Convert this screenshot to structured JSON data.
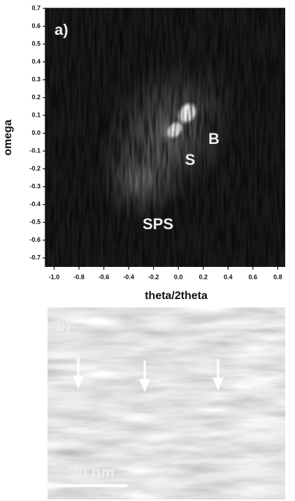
{
  "chart_data": {
    "type": "map",
    "panel_label": "a)",
    "xlabel": "theta/2theta",
    "ylabel": "omega",
    "xlim": [
      -1.07,
      0.86
    ],
    "ylim": [
      -0.75,
      0.7
    ],
    "xticks": [
      {
        "value": -1.0,
        "label": "-1.0"
      },
      -0.8,
      -0.6,
      -0.4,
      -0.2,
      {
        "value": 0.0,
        "label": "0.0"
      },
      0.2,
      0.4,
      0.6,
      0.8
    ],
    "yticks": [
      0.7,
      0.6,
      0.5,
      0.4,
      0.3,
      0.2,
      0.1,
      {
        "value": 0.0,
        "label": "0.0"
      },
      -0.1,
      -0.2,
      -0.3,
      -0.4,
      -0.5,
      -0.6,
      -0.7
    ],
    "annotations": [
      "B",
      "S",
      "SPS"
    ]
  },
  "image_panel": {
    "panel_label": "b)",
    "scale_bar": "20 nm"
  }
}
